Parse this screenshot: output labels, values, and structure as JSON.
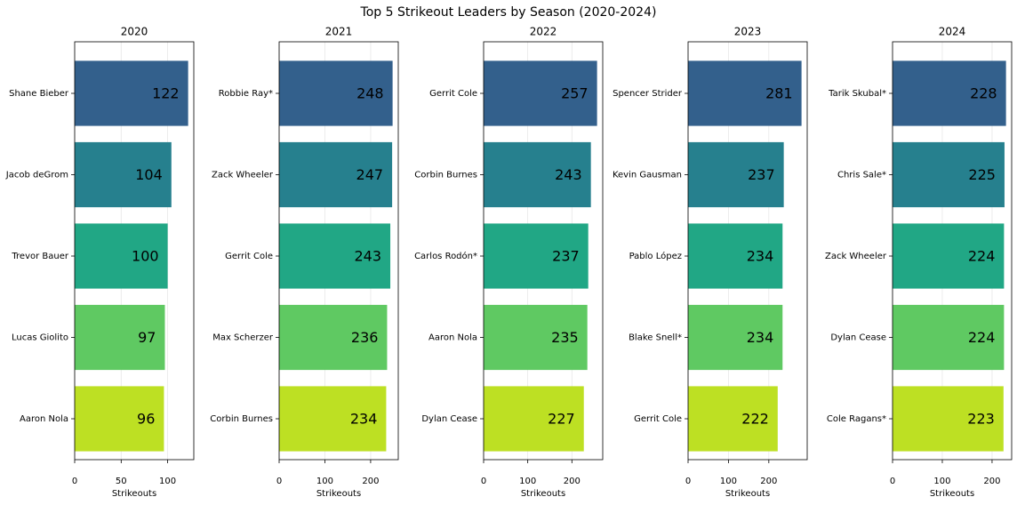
{
  "title": "Top 5 Strikeout Leaders by Season (2020-2024)",
  "chart_data": [
    {
      "type": "bar",
      "orientation": "horizontal",
      "title": "2020",
      "xlabel": "Strikeouts",
      "categories": [
        "Shane Bieber",
        "Jacob deGrom",
        "Trevor Bauer",
        "Lucas Giolito",
        "Aaron Nola"
      ],
      "values": [
        122,
        104,
        100,
        97,
        96
      ],
      "colors": [
        "#33608c",
        "#26808e",
        "#21a785",
        "#5fc962",
        "#bde023"
      ],
      "xlim": [
        0,
        128.1
      ],
      "xticks": [
        0,
        50,
        100
      ],
      "grid": true
    },
    {
      "type": "bar",
      "orientation": "horizontal",
      "title": "2021",
      "xlabel": "Strikeouts",
      "categories": [
        "Robbie Ray*",
        "Zack Wheeler",
        "Gerrit Cole",
        "Max Scherzer",
        "Corbin Burnes"
      ],
      "values": [
        248,
        247,
        243,
        236,
        234
      ],
      "colors": [
        "#33608c",
        "#26808e",
        "#21a785",
        "#5fc962",
        "#bde023"
      ],
      "xlim": [
        0,
        260.4
      ],
      "xticks": [
        0,
        100,
        200
      ],
      "grid": true
    },
    {
      "type": "bar",
      "orientation": "horizontal",
      "title": "2022",
      "xlabel": "Strikeouts",
      "categories": [
        "Gerrit Cole",
        "Corbin Burnes",
        "Carlos Rodón*",
        "Aaron Nola",
        "Dylan Cease"
      ],
      "values": [
        257,
        243,
        237,
        235,
        227
      ],
      "colors": [
        "#33608c",
        "#26808e",
        "#21a785",
        "#5fc962",
        "#bde023"
      ],
      "xlim": [
        0,
        269.85
      ],
      "xticks": [
        0,
        100,
        200
      ],
      "grid": true
    },
    {
      "type": "bar",
      "orientation": "horizontal",
      "title": "2023",
      "xlabel": "Strikeouts",
      "categories": [
        "Spencer Strider",
        "Kevin Gausman",
        "Pablo López",
        "Blake Snell*",
        "Gerrit Cole"
      ],
      "values": [
        281,
        237,
        234,
        234,
        222
      ],
      "colors": [
        "#33608c",
        "#26808e",
        "#21a785",
        "#5fc962",
        "#bde023"
      ],
      "xlim": [
        0,
        295.05
      ],
      "xticks": [
        0,
        100,
        200
      ],
      "grid": true
    },
    {
      "type": "bar",
      "orientation": "horizontal",
      "title": "2024",
      "xlabel": "Strikeouts",
      "categories": [
        "Tarik Skubal*",
        "Chris Sale*",
        "Zack Wheeler",
        "Dylan Cease",
        "Cole Ragans*"
      ],
      "values": [
        228,
        225,
        224,
        224,
        223
      ],
      "colors": [
        "#33608c",
        "#26808e",
        "#21a785",
        "#5fc962",
        "#bde023"
      ],
      "xlim": [
        0,
        239.4
      ],
      "xticks": [
        0,
        100,
        200
      ],
      "grid": true
    }
  ]
}
